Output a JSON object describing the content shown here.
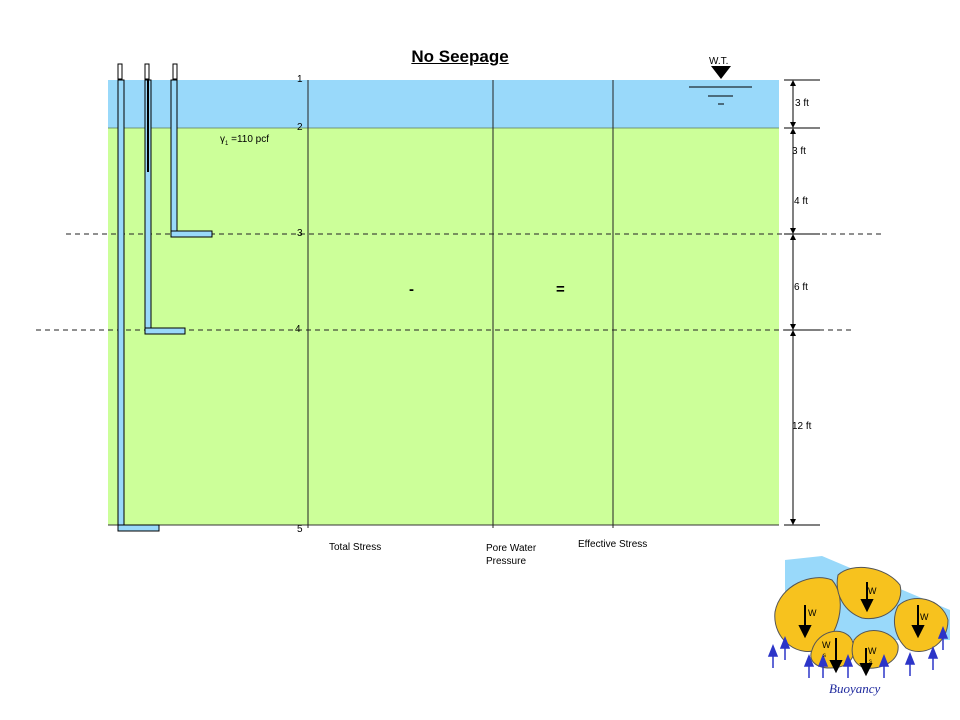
{
  "title": "No Seepage",
  "water_table_label": "W.T.",
  "soil_unit_weight": {
    "symbol": "γ",
    "subscript": "1",
    "text": "=110 pcf"
  },
  "points": [
    "1",
    "2",
    "3",
    "4",
    "5"
  ],
  "dimensions": [
    "3 ft",
    "3 ft",
    "4 ft",
    "6 ft",
    "12 ft"
  ],
  "operators": {
    "minus": "-",
    "equals": "="
  },
  "columns": {
    "total_stress": "Total Stress",
    "pore_water_pressure_line1": "Pore Water",
    "pore_water_pressure_line2": "Pressure",
    "effective_stress": "Effective Stress"
  },
  "inset": {
    "weight_labels": [
      "W",
      "W",
      "W",
      "W",
      "W"
    ],
    "subscripts": [
      "s",
      "s"
    ],
    "caption": "Buoyancy"
  },
  "colors": {
    "water": "#99d9fa",
    "soil": "#ccff99",
    "grain": "#f7c21e",
    "arrow": "#2c35c8"
  }
}
